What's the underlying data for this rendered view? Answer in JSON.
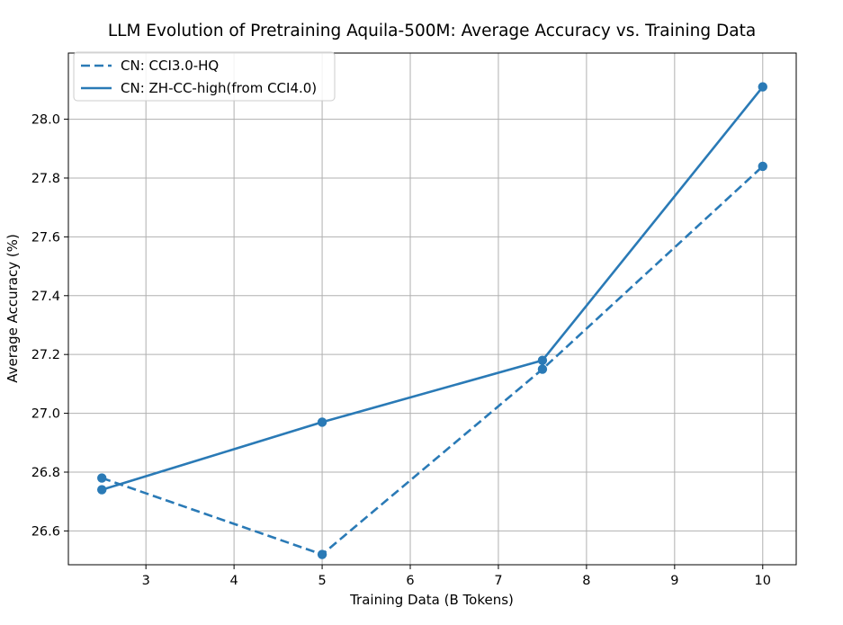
{
  "chart_data": {
    "type": "line",
    "title": "LLM Evolution of Pretraining Aquila-500M: Average Accuracy vs. Training Data",
    "xlabel": "Training Data (B Tokens)",
    "ylabel": "Average Accuracy (%)",
    "xlim": [
      2.12,
      10.38
    ],
    "ylim": [
      26.485,
      28.225
    ],
    "xticks": [
      3,
      4,
      5,
      6,
      7,
      8,
      9,
      10
    ],
    "yticks": [
      26.6,
      26.8,
      27.0,
      27.2,
      27.4,
      27.6,
      27.8,
      28.0
    ],
    "grid": true,
    "legend_position": "top-left",
    "series": [
      {
        "name": "CN: CCI3.0-HQ",
        "x": [
          2.5,
          5,
          7.5,
          10
        ],
        "values": [
          26.78,
          26.52,
          27.15,
          27.84
        ],
        "color": "#2a7ab6",
        "linestyle": "dashed"
      },
      {
        "name": "CN: ZH-CC-high(from CCI4.0)",
        "x": [
          2.5,
          5,
          7.5,
          10
        ],
        "values": [
          26.74,
          26.97,
          27.18,
          28.11
        ],
        "color": "#2a7ab6",
        "linestyle": "solid"
      }
    ]
  }
}
